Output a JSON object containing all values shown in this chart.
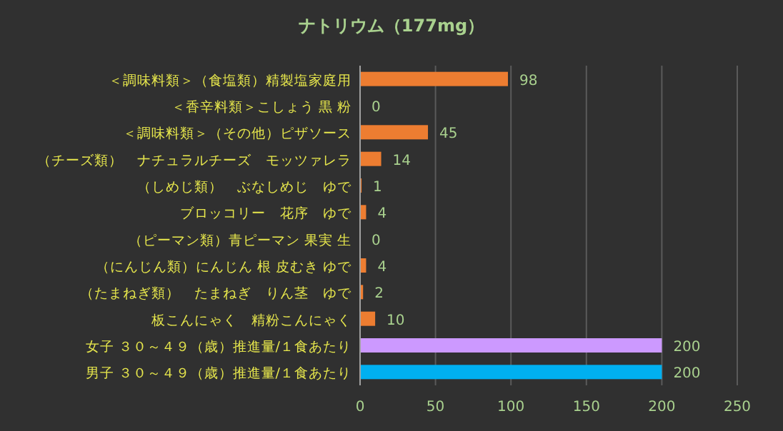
{
  "chart_data": {
    "type": "bar",
    "orientation": "horizontal",
    "title": "ナトリウム（177mg）",
    "categories": [
      "＜調味料類＞（食塩類）精製塩家庭用",
      "＜香辛料類＞こしょう 黒 粉",
      "＜調味料類＞（その他）ピザソース",
      "（チーズ類）　ナチュラルチーズ　モッツァレラ",
      "（しめじ類）　ぶなしめじ　ゆで",
      "ブロッコリー　花序　ゆで",
      "（ピーマン類）青ピーマン 果実 生",
      "（にんじん類）にんじん 根 皮むき ゆで",
      "（たまねぎ類）　たまねぎ　りん茎　ゆで",
      "板こんにゃく　精粉こんにゃく",
      "女子 ３０～４９（歳）推進量/１食あたり",
      "男子 ３０～４９（歳）推進量/１食あたり"
    ],
    "values": [
      98,
      0,
      45,
      14,
      1,
      4,
      0,
      4,
      2,
      10,
      200,
      200
    ],
    "colors": [
      "#ed7d31",
      "#ed7d31",
      "#ed7d31",
      "#ed7d31",
      "#ed7d31",
      "#ed7d31",
      "#ed7d31",
      "#ed7d31",
      "#ed7d31",
      "#ed7d31",
      "#cc99ff",
      "#00b0f0"
    ],
    "xlim": [
      0,
      250
    ],
    "xticks": [
      0,
      50,
      100,
      150,
      200,
      250
    ],
    "grid": "x",
    "data_labels": true
  }
}
